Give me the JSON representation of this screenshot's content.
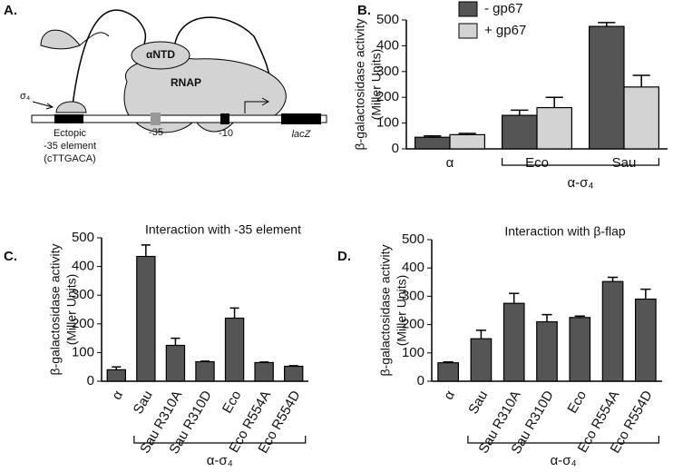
{
  "diagram": {
    "panel_label": "A.",
    "antd": "αNTD",
    "rnap": "RNAP",
    "sigma": "σ₄",
    "ectopic": [
      "Ectopic",
      "-35 element",
      "(cTTGACA)"
    ],
    "m35": "-35",
    "m10": "-10",
    "lacz": "lacZ"
  },
  "chart_data": [
    {
      "type": "bar",
      "panel_label": "B.",
      "ylabel": "β-galactosidase activity",
      "ylabel_units": "(Miller Units)",
      "categories": [
        "α",
        "Eco",
        "Sau"
      ],
      "series": [
        {
          "name": "- gp67",
          "color": "#555555",
          "values": [
            45,
            130,
            475
          ],
          "errors": [
            5,
            20,
            15
          ]
        },
        {
          "name": "+ gp67",
          "color": "#d3d3d3",
          "values": [
            55,
            160,
            240
          ],
          "errors": [
            5,
            40,
            45
          ]
        }
      ],
      "group_label": "α-σ₄",
      "ylim": [
        0,
        500
      ],
      "yticks": [
        0,
        100,
        200,
        300,
        400,
        500
      ],
      "legend": "upper-left"
    },
    {
      "type": "bar",
      "panel_label": "C.",
      "title": "Interaction with -35 element",
      "ylabel": "β-galactosidase activity",
      "ylabel_units": "(Miller Units)",
      "categories": [
        "α",
        "Sau",
        "Sau R310A",
        "Sau R310D",
        "Eco",
        "Eco R554A",
        "Eco R554D"
      ],
      "values": [
        40,
        435,
        125,
        68,
        220,
        65,
        52
      ],
      "errors": [
        10,
        40,
        25,
        2,
        35,
        2,
        2
      ],
      "color": "#555555",
      "group_label": "α-σ₄",
      "ylim": [
        0,
        500
      ],
      "yticks": [
        0,
        100,
        200,
        300,
        400,
        500
      ]
    },
    {
      "type": "bar",
      "panel_label": "D.",
      "title": "Interaction with β-flap",
      "ylabel": "β-galactosidase activity",
      "ylabel_units": "(Miller Units)",
      "categories": [
        "α",
        "Sau",
        "Sau R310A",
        "Sau R310D",
        "Eco",
        "Eco R554A",
        "Eco R554D"
      ],
      "values": [
        65,
        150,
        275,
        210,
        225,
        352,
        290
      ],
      "errors": [
        3,
        30,
        35,
        25,
        5,
        15,
        35
      ],
      "color": "#555555",
      "group_label": "α-σ₄",
      "ylim": [
        0,
        500
      ],
      "yticks": [
        0,
        100,
        200,
        300,
        400,
        500
      ]
    }
  ]
}
